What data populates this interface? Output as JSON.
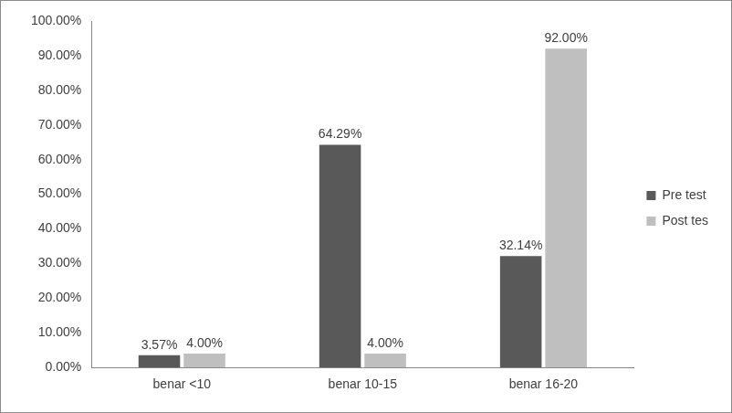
{
  "chart_data": {
    "type": "bar",
    "categories": [
      "benar <10",
      "benar 10-15",
      "benar 16-20"
    ],
    "series": [
      {
        "name": "Pre test",
        "color": "#595959",
        "values": [
          3.57,
          64.29,
          32.14
        ],
        "value_labels": [
          "3.57%",
          "64.29%",
          "32.14%"
        ]
      },
      {
        "name": "Post tes",
        "color": "#bfbfbf",
        "values": [
          4.0,
          4.0,
          92.0
        ],
        "value_labels": [
          "4.00%",
          "4.00%",
          "92.00%"
        ]
      }
    ],
    "ylim": [
      0,
      100
    ],
    "yticks": [
      {
        "value": 0,
        "label": "0.00%"
      },
      {
        "value": 10,
        "label": "10.00%"
      },
      {
        "value": 20,
        "label": "20.00%"
      },
      {
        "value": 30,
        "label": "30.00%"
      },
      {
        "value": 40,
        "label": "40.00%"
      },
      {
        "value": 50,
        "label": "50.00%"
      },
      {
        "value": 60,
        "label": "60.00%"
      },
      {
        "value": 70,
        "label": "70.00%"
      },
      {
        "value": 80,
        "label": "80.00%"
      },
      {
        "value": 90,
        "label": "90.00%"
      },
      {
        "value": 100,
        "label": "100.00%"
      }
    ],
    "grid": false,
    "legend": "right",
    "data_labels": true
  }
}
